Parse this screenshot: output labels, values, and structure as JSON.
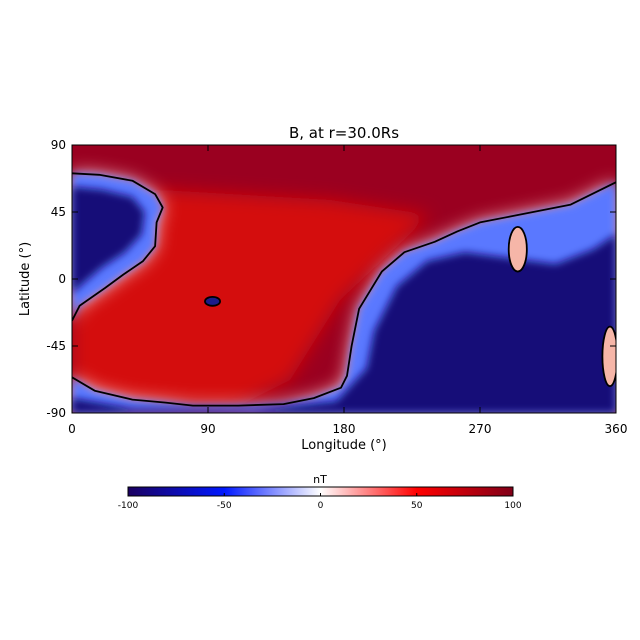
{
  "chart_data": {
    "type": "heatmap",
    "title": "B, at r=30.0Rs",
    "xlabel": "Longitude (°)",
    "ylabel": "Latitude (°)",
    "xlim": [
      0,
      360
    ],
    "ylim": [
      -90,
      90
    ],
    "xticks": [
      0,
      90,
      180,
      270,
      360
    ],
    "yticks": [
      90,
      45,
      0,
      -45,
      -90
    ],
    "colorbar": {
      "label": "nT",
      "range": [
        -100,
        100
      ],
      "ticks": [
        -100,
        -50,
        0,
        50,
        100
      ],
      "colors": [
        "#1a0060",
        "#0018ff",
        "#ffffff",
        "#ff0000",
        "#800018"
      ],
      "placement": "bottom"
    },
    "polarity_contour": {
      "value": 0,
      "color": "#000000",
      "main_boundary": [
        [
          0,
          71
        ],
        [
          18,
          70
        ],
        [
          40,
          66
        ],
        [
          55,
          57
        ],
        [
          60,
          48
        ],
        [
          56,
          38
        ],
        [
          55,
          22
        ],
        [
          47,
          12
        ],
        [
          34,
          3
        ],
        [
          22,
          -6
        ],
        [
          5,
          -18
        ],
        [
          0,
          -28
        ]
      ],
      "lower_boundary": [
        [
          0,
          -66
        ],
        [
          15,
          -75
        ],
        [
          40,
          -81
        ],
        [
          62,
          -83
        ],
        [
          80,
          -85
        ],
        [
          110,
          -85
        ],
        [
          140,
          -84
        ],
        [
          160,
          -80
        ],
        [
          178,
          -73
        ],
        [
          182,
          -65
        ],
        [
          185,
          -45
        ],
        [
          190,
          -20
        ],
        [
          205,
          5
        ],
        [
          220,
          18
        ],
        [
          240,
          25
        ],
        [
          255,
          32
        ],
        [
          270,
          38
        ],
        [
          290,
          42
        ],
        [
          330,
          50
        ],
        [
          360,
          65
        ]
      ],
      "islands": [
        {
          "center": [
            93,
            -15
          ],
          "rx": 5,
          "ry": 3
        },
        {
          "center": [
            295,
            20
          ],
          "rx": 6,
          "ry": 15
        },
        {
          "center": [
            356,
            -52
          ],
          "rx": 5,
          "ry": 20
        }
      ]
    },
    "field_regions": [
      {
        "polarity": "positive",
        "extent": "north polar cap and lon 60-180 band, plus southern hemisphere lon 0-185"
      },
      {
        "polarity": "negative",
        "extent": "lon 0-55 north of lat 0, lon 185-360 south of the boundary, south polar cap"
      }
    ]
  }
}
